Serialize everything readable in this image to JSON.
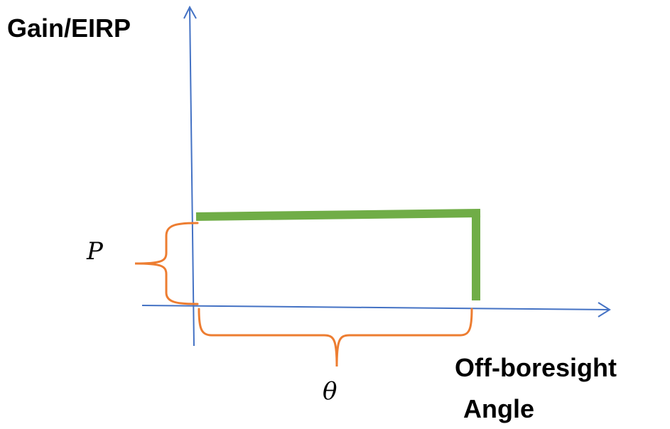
{
  "labels": {
    "y_axis": "Gain/EIRP",
    "x_axis_line1": "Off-boresight",
    "x_axis_line2": "Angle",
    "power_symbol": "P",
    "angle_symbol": "θ"
  },
  "colors": {
    "axis": "#4472C4",
    "pattern": "#70AD47",
    "brace": "#ED7D31",
    "text": "#000000"
  }
}
